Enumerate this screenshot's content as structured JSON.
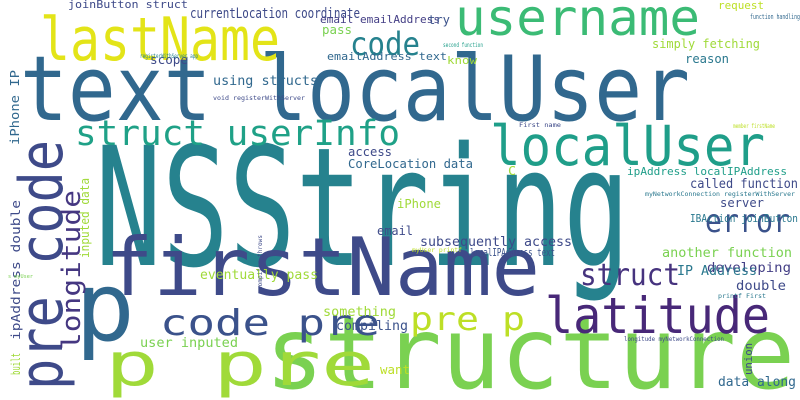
{
  "words": [
    "text localUser",
    "NSString",
    "firstName",
    "structure",
    "p pre",
    "p",
    "pre code",
    "lastName",
    "username",
    "localUser",
    "code",
    "struct userInfo",
    "latitude",
    "code pre",
    "pre p",
    "error",
    "struct",
    "longitude",
    "iPhone IP",
    "currentLocation coordinate",
    "joinButton struct",
    "email emailAddress",
    "try",
    "pass",
    "emailAddress text",
    "know",
    "scope",
    "request",
    "function handling",
    "second function",
    "registerWithServer app",
    "simply fetching",
    "reason",
    "using structs",
    "void registerWithServer",
    "First name",
    "member firstName",
    "access",
    "CoreLocation data",
    "C",
    "ipAddress localIPAddress",
    "called function",
    "myNetworkConnection registerWithServer",
    "server",
    "iPhone",
    "IBAction joinButton",
    "inputed data",
    "email",
    "subsequently access",
    "developing",
    "localIPAddress text",
    "another function",
    "myUser printf",
    "eventually pass",
    "IP Address",
    "ipAddress double",
    "compiler throws",
    "s myUser",
    "double",
    "printf First",
    "something",
    "compiling",
    "longitude myNetworkConnection",
    "user inputed",
    "built",
    "want",
    "union",
    "data along"
  ]
}
